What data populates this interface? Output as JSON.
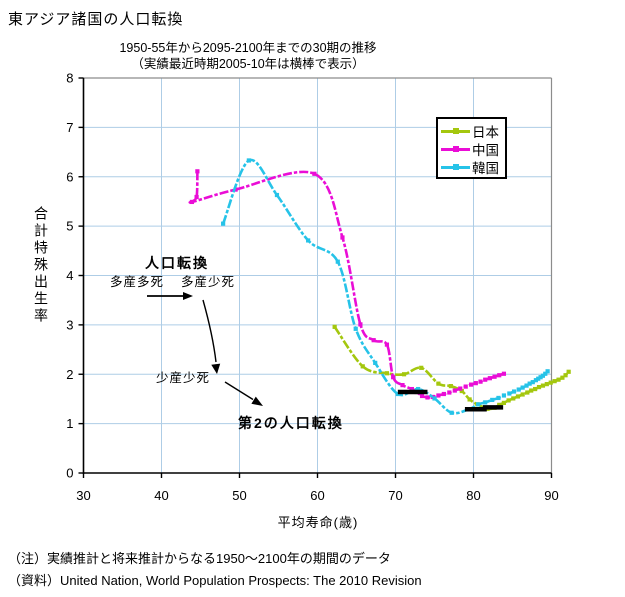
{
  "title": "東アジア諸国の人口転換",
  "chart": {
    "subtitle_line1": "1950-55年から2095-2100年までの30期の推移",
    "subtitle_line2": "（実績最近時期2005-10年は横棒で表示）",
    "y_axis_title": "合計特殊出生率",
    "x_axis_title": "平均寿命(歳)"
  },
  "annotations": {
    "transition_title": "人口転換",
    "stage_high_birth_high_death": "多産多死",
    "stage_high_birth_low_death": "多産少死",
    "stage_low_birth_low_death": "少産少死",
    "second_transition": "第2の人口転換"
  },
  "notes": {
    "note": "（注）実績推計と将来推計からなる1950〜2100年の期間のデータ",
    "source": "（資料）United Nation, World Population Prospects: The 2010 Revision"
  },
  "chart_data": {
    "type": "line",
    "title": "東アジア諸国の人口転換",
    "subtitle": "1950-55年から2095-2100年までの30期の推移（実績最近時期2005-10年は横棒で表示）",
    "xlabel": "平均寿命(歳)",
    "ylabel": "合計特殊出生率",
    "xlim": [
      30,
      90
    ],
    "ylim": [
      0,
      8
    ],
    "x_ticks": [
      30,
      40,
      50,
      60,
      70,
      80,
      90
    ],
    "y_ticks": [
      0,
      1,
      2,
      3,
      4,
      5,
      6,
      7,
      8
    ],
    "grid": true,
    "gridline_color": "#AECDE6",
    "border_color": "#8C8C8C",
    "legend_position": "upper-right-inside",
    "series": [
      {
        "name": "日本",
        "color": "#A4C70E",
        "points": [
          [
            62.2,
            2.96
          ],
          [
            65.8,
            2.16
          ],
          [
            68.9,
            2.02
          ],
          [
            71.1,
            2.0
          ],
          [
            73.3,
            2.13
          ],
          [
            75.5,
            1.81
          ],
          [
            77.1,
            1.76
          ],
          [
            78.5,
            1.66
          ],
          [
            79.5,
            1.49
          ],
          [
            80.5,
            1.39
          ],
          [
            81.8,
            1.3
          ],
          [
            82.7,
            1.32
          ],
          [
            83.3,
            1.38
          ],
          [
            83.9,
            1.42
          ],
          [
            84.5,
            1.47
          ],
          [
            85.1,
            1.51
          ],
          [
            85.7,
            1.55
          ],
          [
            86.3,
            1.59
          ],
          [
            86.9,
            1.63
          ],
          [
            87.4,
            1.67
          ],
          [
            87.9,
            1.7
          ],
          [
            88.4,
            1.74
          ],
          [
            88.9,
            1.77
          ],
          [
            89.4,
            1.8
          ],
          [
            89.9,
            1.83
          ],
          [
            90.4,
            1.86
          ],
          [
            90.9,
            1.89
          ],
          [
            91.4,
            1.93
          ],
          [
            91.8,
            1.98
          ],
          [
            92.2,
            2.05
          ]
        ]
      },
      {
        "name": "中国",
        "color": "#EA0DD6",
        "points": [
          [
            44.6,
            6.11
          ],
          [
            44.5,
            5.59
          ],
          [
            43.9,
            5.49
          ],
          [
            49.5,
            5.74
          ],
          [
            59.6,
            6.06
          ],
          [
            63.2,
            4.77
          ],
          [
            65.5,
            3.01
          ],
          [
            67.2,
            2.69
          ],
          [
            68.9,
            2.6
          ],
          [
            69.7,
            1.94
          ],
          [
            70.9,
            1.78
          ],
          [
            72.1,
            1.7
          ],
          [
            72.7,
            1.64
          ],
          [
            73.4,
            1.56
          ],
          [
            74.1,
            1.53
          ],
          [
            74.8,
            1.54
          ],
          [
            75.5,
            1.57
          ],
          [
            76.2,
            1.6
          ],
          [
            76.9,
            1.63
          ],
          [
            77.6,
            1.67
          ],
          [
            78.3,
            1.71
          ],
          [
            79.0,
            1.75
          ],
          [
            79.7,
            1.79
          ],
          [
            80.3,
            1.82
          ],
          [
            80.9,
            1.85
          ],
          [
            81.5,
            1.89
          ],
          [
            82.1,
            1.92
          ],
          [
            82.7,
            1.95
          ],
          [
            83.3,
            1.98
          ],
          [
            83.9,
            2.01
          ]
        ]
      },
      {
        "name": "韓国",
        "color": "#26C3E8",
        "points": [
          [
            47.9,
            5.05
          ],
          [
            51.2,
            6.33
          ],
          [
            54.8,
            5.63
          ],
          [
            58.8,
            4.71
          ],
          [
            62.6,
            4.28
          ],
          [
            64.9,
            2.92
          ],
          [
            67.4,
            2.23
          ],
          [
            70.3,
            1.6
          ],
          [
            72.9,
            1.7
          ],
          [
            75.0,
            1.51
          ],
          [
            77.2,
            1.22
          ],
          [
            79.4,
            1.29
          ],
          [
            80.6,
            1.39
          ],
          [
            81.5,
            1.43
          ],
          [
            82.4,
            1.48
          ],
          [
            83.2,
            1.52
          ],
          [
            83.9,
            1.57
          ],
          [
            84.6,
            1.61
          ],
          [
            85.2,
            1.65
          ],
          [
            85.8,
            1.69
          ],
          [
            86.3,
            1.73
          ],
          [
            86.8,
            1.77
          ],
          [
            87.2,
            1.81
          ],
          [
            87.6,
            1.84
          ],
          [
            88.0,
            1.88
          ],
          [
            88.3,
            1.91
          ],
          [
            88.6,
            1.94
          ],
          [
            88.9,
            1.97
          ],
          [
            89.2,
            2.01
          ],
          [
            89.5,
            2.06
          ]
        ]
      }
    ],
    "latest_period_bars": {
      "label": "2005-10",
      "color": "#000000",
      "bars": [
        {
          "series": "中国",
          "x_from": 70.3,
          "x_to": 74.1,
          "y": 1.64
        },
        {
          "series": "韓国",
          "x_from": 78.9,
          "x_to": 81.7,
          "y": 1.29
        },
        {
          "series": "日本",
          "x_from": 81.2,
          "x_to": 83.8,
          "y": 1.33
        }
      ]
    }
  }
}
